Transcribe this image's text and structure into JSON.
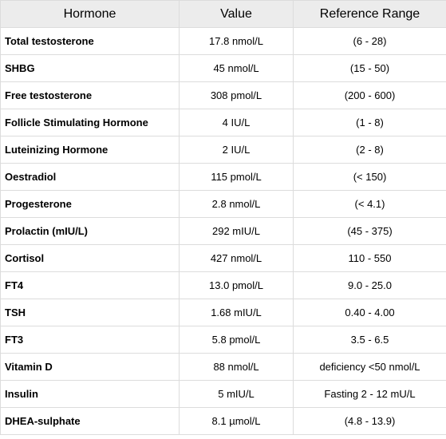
{
  "table": {
    "headers": [
      "Hormone",
      "Value",
      "Reference Range"
    ],
    "rows": [
      {
        "hormone": "Total testosterone",
        "value": "17.8 nmol/L",
        "range": "(6 - 28)"
      },
      {
        "hormone": "SHBG",
        "value": "45 nmol/L",
        "range": "(15 - 50)"
      },
      {
        "hormone": "Free testosterone",
        "value": "308 pmol/L",
        "range": "(200 - 600)"
      },
      {
        "hormone": "Follicle Stimulating Hormone",
        "value": "4 IU/L",
        "range": "(1 - 8)"
      },
      {
        "hormone": "Luteinizing Hormone",
        "value": "2 IU/L",
        "range": "(2 - 8)"
      },
      {
        "hormone": "Oestradiol",
        "value": "115 pmol/L",
        "range": "(< 150)"
      },
      {
        "hormone": "Progesterone",
        "value": "2.8 nmol/L",
        "range": "(< 4.1)"
      },
      {
        "hormone": "Prolactin (mIU/L)",
        "value": "292 mIU/L",
        "range": "(45 - 375)"
      },
      {
        "hormone": "Cortisol",
        "value": "427 nmol/L",
        "range": "110 - 550"
      },
      {
        "hormone": "FT4",
        "value": "13.0 pmol/L",
        "range": "9.0 - 25.0"
      },
      {
        "hormone": "TSH",
        "value": "1.68 mIU/L",
        "range": "0.40 - 4.00"
      },
      {
        "hormone": "FT3",
        "value": "5.8 pmol/L",
        "range": "3.5 - 6.5"
      },
      {
        "hormone": "Vitamin D",
        "value": "88 nmol/L",
        "range": "deficiency <50 nmol/L"
      },
      {
        "hormone": "Insulin",
        "value": "5 mIU/L",
        "range": "Fasting 2 - 12 mU/L"
      },
      {
        "hormone": "DHEA-sulphate",
        "value": "8.1 µmol/L",
        "range": "(4.8 - 13.9)"
      }
    ]
  }
}
